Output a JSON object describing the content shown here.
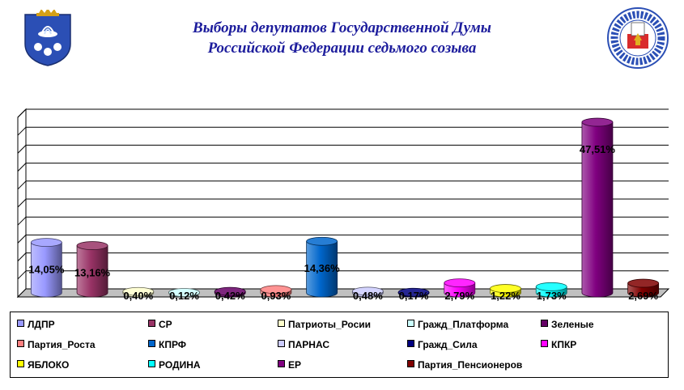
{
  "header": {
    "title_line1": "Выборы депутатов Государственной Думы",
    "title_line2": "Российской Федерации седьмого созыва"
  },
  "chart_data": {
    "type": "bar",
    "style": "3d-cylinder",
    "title": "",
    "xlabel": "",
    "ylabel": "",
    "ylim": [
      0,
      50
    ],
    "grid": true,
    "legend_position": "bottom",
    "categories": [
      "ЛДПР",
      "СР",
      "Патриоты_Росии",
      "Гражд_Платформа",
      "Зеленые",
      "Партия_Роста",
      "КПРФ",
      "ПАРНАС",
      "Гражд_Сила",
      "КПКР",
      "ЯБЛОКО",
      "РОДИНА",
      "ЕР",
      "Партия_Пенсионеров"
    ],
    "values": [
      14.05,
      13.16,
      0.4,
      0.12,
      0.42,
      0.93,
      14.36,
      0.48,
      0.17,
      2.79,
      1.22,
      1.73,
      47.51,
      2.69
    ],
    "labels": [
      "14,05%",
      "13,16%",
      "0,40%",
      "0,12%",
      "0,42%",
      "0,93%",
      "14,36%",
      "0,48%",
      "0,17%",
      "2,79%",
      "1,22%",
      "1,73%",
      "47,51%",
      "2,69%"
    ],
    "colors": [
      "#9999ff",
      "#993366",
      "#ffffcc",
      "#ccffff",
      "#660066",
      "#ff8080",
      "#0066cc",
      "#ccccff",
      "#000080",
      "#ff00ff",
      "#ffff00",
      "#00ffff",
      "#800080",
      "#800000"
    ]
  }
}
